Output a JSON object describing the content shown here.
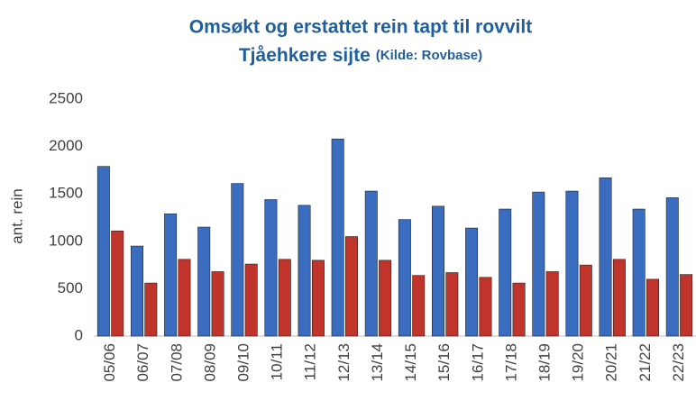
{
  "chart_data": {
    "type": "bar",
    "title": "Omsøkt og erstattet rein tapt til rovvilt",
    "subtitle": "Tjåehkere sijte",
    "source": "(Kilde: Rovbase)",
    "ylabel": "ant. rein",
    "categories": [
      "05/06",
      "06/07",
      "07/08",
      "08/09",
      "09/10",
      "10/11",
      "11/12",
      "12/13",
      "13/14",
      "14/15",
      "15/16",
      "16/17",
      "17/18",
      "18/19",
      "19/20",
      "20/21",
      "21/22",
      "22/23"
    ],
    "series": [
      {
        "color": "#3a6cc0",
        "values": [
          1790,
          950,
          1290,
          1150,
          1610,
          1440,
          1380,
          2080,
          1530,
          1230,
          1370,
          1140,
          1340,
          1520,
          1530,
          1670,
          1340,
          1460
        ]
      },
      {
        "color": "#c0342c",
        "values": [
          1110,
          560,
          810,
          680,
          760,
          810,
          800,
          1050,
          800,
          640,
          670,
          620,
          560,
          680,
          750,
          810,
          600,
          650
        ]
      }
    ],
    "ylim": [
      0,
      2500
    ],
    "yticks": [
      0,
      500,
      1000,
      1500,
      2000,
      2500
    ],
    "grid": false
  }
}
